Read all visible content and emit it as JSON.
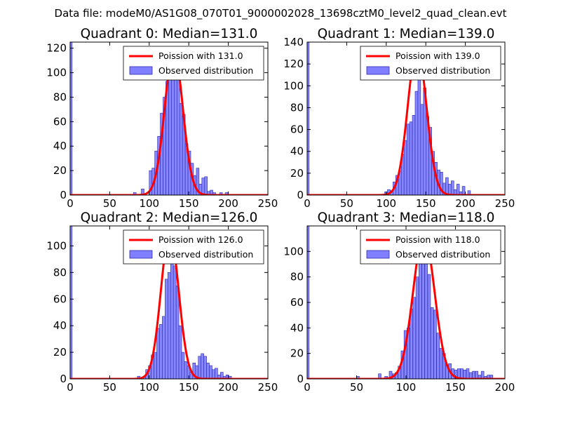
{
  "suptitle": "Data file: modeM0/AS1G08_070T01_9000002028_13698cztM0_level2_quad_clean.evt",
  "colors": {
    "hist_fill": "#8080ff",
    "hist_edge": "#2a2ab0",
    "poisson_line": "#ff0000",
    "axes": "#000000",
    "background": "#ffffff"
  },
  "chart_data": [
    {
      "type": "bar",
      "title": "Quadrant 0: Median=131.0",
      "xlim": [
        0,
        250
      ],
      "ylim": [
        0,
        125
      ],
      "xticks": [
        "0",
        "50",
        "100",
        "150",
        "200",
        "250"
      ],
      "yticks": [
        "0",
        "20",
        "40",
        "60",
        "80",
        "100",
        "120"
      ],
      "legend": {
        "position": "top-right",
        "poisson_label": "Poission with 131.0",
        "observed_label": "Observed distribution"
      },
      "poisson_mean": 131.0,
      "poisson_peak": 118,
      "zero_bin": {
        "x": 0,
        "width": 2.5,
        "count": 125
      },
      "bin_width": 3.5,
      "bins": [
        {
          "x": 80,
          "count": 2
        },
        {
          "x": 90,
          "count": 5
        },
        {
          "x": 100,
          "count": 20
        },
        {
          "x": 103.5,
          "count": 22
        },
        {
          "x": 107,
          "count": 36
        },
        {
          "x": 110.5,
          "count": 48
        },
        {
          "x": 114,
          "count": 67
        },
        {
          "x": 117.5,
          "count": 80
        },
        {
          "x": 121,
          "count": 93
        },
        {
          "x": 124.5,
          "count": 96
        },
        {
          "x": 128,
          "count": 114
        },
        {
          "x": 131.5,
          "count": 111
        },
        {
          "x": 135,
          "count": 105
        },
        {
          "x": 138.5,
          "count": 75
        },
        {
          "x": 142,
          "count": 66
        },
        {
          "x": 145.5,
          "count": 42
        },
        {
          "x": 149,
          "count": 36
        },
        {
          "x": 152.5,
          "count": 26
        },
        {
          "x": 156,
          "count": 16
        },
        {
          "x": 159.5,
          "count": 22
        },
        {
          "x": 163,
          "count": 9
        },
        {
          "x": 166.5,
          "count": 14
        },
        {
          "x": 170,
          "count": 15
        },
        {
          "x": 173.5,
          "count": 3
        },
        {
          "x": 177,
          "count": 4
        },
        {
          "x": 180.5,
          "count": 2
        },
        {
          "x": 189,
          "count": 2
        },
        {
          "x": 196,
          "count": 2
        }
      ]
    },
    {
      "type": "bar",
      "title": "Quadrant 1: Median=139.0",
      "xlim": [
        0,
        250
      ],
      "ylim": [
        0,
        140
      ],
      "xticks": [
        "0",
        "50",
        "100",
        "150",
        "200",
        "250"
      ],
      "yticks": [
        "0",
        "20",
        "40",
        "60",
        "80",
        "100",
        "120",
        "140"
      ],
      "legend": {
        "position": "top-right",
        "poisson_label": "Poission with 139.0",
        "observed_label": "Observed distribution"
      },
      "poisson_mean": 139.0,
      "poisson_peak": 135,
      "zero_bin": {
        "x": 0,
        "width": 2.5,
        "count": 140
      },
      "bin_width": 3.5,
      "bins": [
        {
          "x": 98,
          "count": 3
        },
        {
          "x": 101.5,
          "count": 5
        },
        {
          "x": 105,
          "count": 4
        },
        {
          "x": 108.5,
          "count": 12
        },
        {
          "x": 112,
          "count": 18
        },
        {
          "x": 115.5,
          "count": 22
        },
        {
          "x": 119,
          "count": 37
        },
        {
          "x": 122.5,
          "count": 50
        },
        {
          "x": 126,
          "count": 65
        },
        {
          "x": 129.5,
          "count": 67
        },
        {
          "x": 133,
          "count": 73
        },
        {
          "x": 136.5,
          "count": 95
        },
        {
          "x": 140,
          "count": 133
        },
        {
          "x": 143.5,
          "count": 83
        },
        {
          "x": 147,
          "count": 98
        },
        {
          "x": 150.5,
          "count": 72
        },
        {
          "x": 154,
          "count": 62
        },
        {
          "x": 157.5,
          "count": 40
        },
        {
          "x": 161,
          "count": 30
        },
        {
          "x": 164.5,
          "count": 23
        },
        {
          "x": 168,
          "count": 21
        },
        {
          "x": 171.5,
          "count": 11
        },
        {
          "x": 175,
          "count": 16
        },
        {
          "x": 178.5,
          "count": 10
        },
        {
          "x": 182,
          "count": 13
        },
        {
          "x": 185.5,
          "count": 5
        },
        {
          "x": 189,
          "count": 10
        },
        {
          "x": 192.5,
          "count": 3
        },
        {
          "x": 196,
          "count": 8
        },
        {
          "x": 203,
          "count": 4
        }
      ]
    },
    {
      "type": "bar",
      "title": "Quadrant 2: Median=126.0",
      "xlim": [
        0,
        250
      ],
      "ylim": [
        0,
        115
      ],
      "xticks": [
        "0",
        "50",
        "100",
        "150",
        "200",
        "250"
      ],
      "yticks": [
        "0",
        "20",
        "40",
        "60",
        "80",
        "100"
      ],
      "legend": {
        "position": "top-right",
        "poisson_label": "Poission with 126.0",
        "observed_label": "Observed distribution"
      },
      "poisson_mean": 126.0,
      "poisson_peak": 110,
      "zero_bin": {
        "x": 0,
        "width": 2.5,
        "count": 115
      },
      "bin_width": 3.5,
      "bins": [
        {
          "x": 85,
          "count": 2
        },
        {
          "x": 92,
          "count": 2
        },
        {
          "x": 95.5,
          "count": 7
        },
        {
          "x": 99,
          "count": 10
        },
        {
          "x": 102.5,
          "count": 18
        },
        {
          "x": 106,
          "count": 20
        },
        {
          "x": 109.5,
          "count": 38
        },
        {
          "x": 113,
          "count": 41
        },
        {
          "x": 116.5,
          "count": 47
        },
        {
          "x": 120,
          "count": 75
        },
        {
          "x": 123.5,
          "count": 80
        },
        {
          "x": 127,
          "count": 110
        },
        {
          "x": 130.5,
          "count": 85
        },
        {
          "x": 134,
          "count": 70
        },
        {
          "x": 137.5,
          "count": 40
        },
        {
          "x": 141,
          "count": 20
        },
        {
          "x": 144.5,
          "count": 13
        },
        {
          "x": 148,
          "count": 10
        },
        {
          "x": 151.5,
          "count": 5
        },
        {
          "x": 155,
          "count": 12
        },
        {
          "x": 158.5,
          "count": 10
        },
        {
          "x": 162,
          "count": 17
        },
        {
          "x": 165.5,
          "count": 19
        },
        {
          "x": 169,
          "count": 17
        },
        {
          "x": 172.5,
          "count": 12
        },
        {
          "x": 176,
          "count": 10
        },
        {
          "x": 179.5,
          "count": 7
        },
        {
          "x": 183,
          "count": 8
        },
        {
          "x": 186.5,
          "count": 3
        },
        {
          "x": 190,
          "count": 5
        },
        {
          "x": 193.5,
          "count": 2
        },
        {
          "x": 197,
          "count": 3
        },
        {
          "x": 200.5,
          "count": 2
        }
      ]
    },
    {
      "type": "bar",
      "title": "Quadrant 3: Median=118.0",
      "xlim": [
        0,
        200
      ],
      "ylim": [
        0,
        120
      ],
      "xticks": [
        "0",
        "50",
        "100",
        "150",
        "200"
      ],
      "yticks": [
        "0",
        "20",
        "40",
        "60",
        "80",
        "100"
      ],
      "legend": {
        "position": "top-right",
        "poisson_label": "Poission with 118.0",
        "observed_label": "Observed distribution"
      },
      "poisson_mean": 118.0,
      "poisson_peak": 113,
      "zero_bin": {
        "x": 0,
        "width": 2.0,
        "count": 120
      },
      "bin_width": 2.8,
      "bins": [
        {
          "x": 50,
          "count": 2
        },
        {
          "x": 72,
          "count": 4
        },
        {
          "x": 78.5,
          "count": 2
        },
        {
          "x": 83,
          "count": 6
        },
        {
          "x": 86,
          "count": 4
        },
        {
          "x": 89,
          "count": 5
        },
        {
          "x": 92,
          "count": 10
        },
        {
          "x": 95,
          "count": 22
        },
        {
          "x": 98,
          "count": 38
        },
        {
          "x": 101,
          "count": 40
        },
        {
          "x": 104,
          "count": 55
        },
        {
          "x": 107,
          "count": 64
        },
        {
          "x": 110,
          "count": 80
        },
        {
          "x": 113,
          "count": 92
        },
        {
          "x": 116,
          "count": 112
        },
        {
          "x": 119,
          "count": 98
        },
        {
          "x": 122,
          "count": 82
        },
        {
          "x": 125,
          "count": 56
        },
        {
          "x": 128,
          "count": 54
        },
        {
          "x": 131,
          "count": 36
        },
        {
          "x": 134,
          "count": 24
        },
        {
          "x": 137,
          "count": 20
        },
        {
          "x": 140,
          "count": 11
        },
        {
          "x": 143,
          "count": 12
        },
        {
          "x": 146,
          "count": 8
        },
        {
          "x": 149,
          "count": 7
        },
        {
          "x": 152,
          "count": 8
        },
        {
          "x": 155,
          "count": 8
        },
        {
          "x": 158,
          "count": 7
        },
        {
          "x": 161,
          "count": 8
        },
        {
          "x": 164,
          "count": 5
        },
        {
          "x": 167,
          "count": 6
        },
        {
          "x": 170,
          "count": 6
        },
        {
          "x": 173,
          "count": 3
        },
        {
          "x": 176,
          "count": 6
        },
        {
          "x": 179,
          "count": 2
        },
        {
          "x": 182,
          "count": 3
        },
        {
          "x": 185,
          "count": 3
        }
      ]
    }
  ]
}
